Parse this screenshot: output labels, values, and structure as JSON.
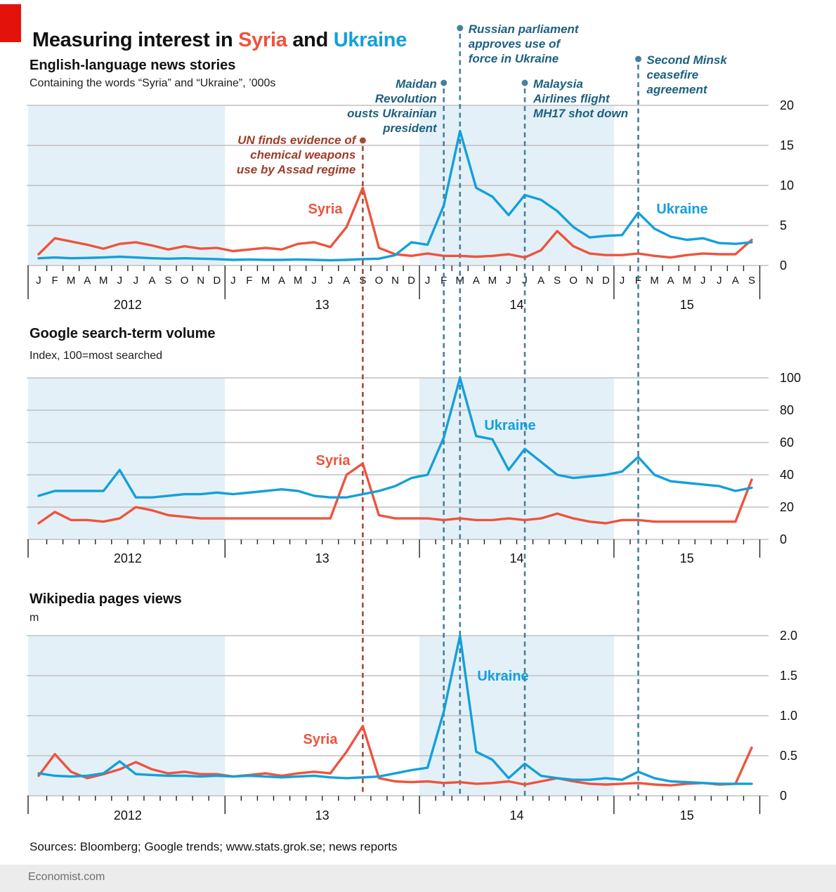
{
  "header": {
    "title_prefix": "Measuring interest in ",
    "title_syria": "Syria",
    "title_and": " and ",
    "title_ukraine": "Ukraine"
  },
  "colors": {
    "accent": "#e3120b",
    "syria": "#ed543e",
    "ukraine": "#13a0da",
    "event_blue": "#45809f",
    "event_red": "#a64a37",
    "annotation_blue": "#1e607e",
    "annotation_red": "#9e3c2a",
    "band": "#e4f0f8",
    "grid": "#c0c0c0"
  },
  "panels": [
    {
      "title": "English-language news stories",
      "subtitle": "Containing the words “Syria” and “Ukraine”, ’000s"
    },
    {
      "title": "Google search-term volume",
      "subtitle": "Index, 100=most searched"
    },
    {
      "title": "Wikipedia pages views",
      "subtitle": "m"
    }
  ],
  "x_axis": {
    "months": [
      "J",
      "F",
      "M",
      "A",
      "M",
      "J",
      "J",
      "A",
      "S",
      "O",
      "N",
      "D",
      "J",
      "F",
      "M",
      "A",
      "M",
      "J",
      "J",
      "A",
      "S",
      "O",
      "N",
      "D",
      "J",
      "F",
      "M",
      "A",
      "M",
      "J",
      "J",
      "A",
      "S",
      "O",
      "N",
      "D",
      "J",
      "F",
      "M",
      "A",
      "M",
      "J",
      "J",
      "A",
      "S"
    ],
    "year_labels": [
      "2012",
      "13",
      "14",
      "15"
    ],
    "year_starts": [
      0,
      12,
      24,
      36
    ],
    "shaded_years": [
      [
        0,
        11
      ],
      [
        24,
        35
      ]
    ]
  },
  "chart_data": [
    {
      "type": "line",
      "title": "English-language news stories",
      "ylabel": "'000s",
      "ylim": [
        0,
        20
      ],
      "yticks": [
        0,
        5,
        10,
        15,
        20
      ],
      "ytick_labels": [
        "0",
        "5",
        "10",
        "15",
        "20"
      ],
      "series": [
        {
          "name": "Syria",
          "color_key": "syria",
          "values": [
            1.4,
            3.4,
            3.0,
            2.6,
            2.1,
            2.7,
            2.9,
            2.5,
            2.0,
            2.4,
            2.1,
            2.2,
            1.8,
            2.0,
            2.2,
            2.0,
            2.7,
            2.9,
            2.3,
            4.8,
            9.7,
            2.2,
            1.4,
            1.2,
            1.5,
            1.2,
            1.2,
            1.1,
            1.2,
            1.4,
            1.0,
            1.9,
            4.3,
            2.4,
            1.5,
            1.3,
            1.3,
            1.5,
            1.2,
            1.0,
            1.3,
            1.5,
            1.4,
            1.4,
            3.2
          ]
        },
        {
          "name": "Ukraine",
          "color_key": "ukraine",
          "values": [
            0.9,
            1.0,
            0.9,
            0.95,
            1.0,
            1.1,
            1.0,
            0.9,
            0.85,
            0.9,
            0.85,
            0.8,
            0.7,
            0.75,
            0.7,
            0.7,
            0.75,
            0.7,
            0.65,
            0.7,
            0.8,
            0.85,
            1.3,
            2.9,
            2.6,
            7.5,
            16.8,
            9.7,
            8.6,
            6.3,
            8.8,
            8.2,
            6.8,
            4.8,
            3.5,
            3.7,
            3.8,
            6.6,
            4.6,
            3.6,
            3.2,
            3.4,
            2.8,
            2.7,
            2.9
          ]
        }
      ]
    },
    {
      "type": "line",
      "title": "Google search-term volume",
      "ylabel": "Index, 100=most searched",
      "ylim": [
        0,
        100
      ],
      "yticks": [
        0,
        20,
        40,
        60,
        80,
        100
      ],
      "ytick_labels": [
        "0",
        "20",
        "40",
        "60",
        "80",
        "100"
      ],
      "series": [
        {
          "name": "Syria",
          "color_key": "syria",
          "values": [
            10,
            17,
            12,
            12,
            11,
            13,
            20,
            18,
            15,
            14,
            13,
            13,
            13,
            13,
            13,
            13,
            13,
            13,
            13,
            40,
            47,
            15,
            13,
            13,
            13,
            12,
            13,
            12,
            12,
            13,
            12,
            13,
            16,
            13,
            11,
            10,
            12,
            12,
            11,
            11,
            11,
            11,
            11,
            11,
            37
          ]
        },
        {
          "name": "Ukraine",
          "color_key": "ukraine",
          "values": [
            27,
            30,
            30,
            30,
            30,
            43,
            26,
            26,
            27,
            28,
            28,
            29,
            28,
            29,
            30,
            31,
            30,
            27,
            26,
            26,
            28,
            30,
            33,
            38,
            40,
            63,
            100,
            64,
            62,
            43,
            56,
            48,
            40,
            38,
            39,
            40,
            42,
            51,
            40,
            36,
            35,
            34,
            33,
            30,
            32
          ]
        }
      ]
    },
    {
      "type": "line",
      "title": "Wikipedia pages views",
      "ylabel": "m",
      "ylim": [
        0,
        2
      ],
      "yticks": [
        0,
        0.5,
        1,
        1.5,
        2
      ],
      "ytick_labels": [
        "0",
        "0.5",
        "1.0",
        "1.5",
        "2.0"
      ],
      "series": [
        {
          "name": "Syria",
          "color_key": "syria",
          "values": [
            0.25,
            0.52,
            0.3,
            0.22,
            0.27,
            0.33,
            0.42,
            0.33,
            0.28,
            0.3,
            0.27,
            0.27,
            0.24,
            0.26,
            0.28,
            0.25,
            0.28,
            0.3,
            0.28,
            0.55,
            0.87,
            0.22,
            0.18,
            0.17,
            0.18,
            0.16,
            0.17,
            0.15,
            0.16,
            0.18,
            0.14,
            0.18,
            0.22,
            0.18,
            0.15,
            0.14,
            0.15,
            0.16,
            0.14,
            0.13,
            0.15,
            0.16,
            0.14,
            0.15,
            0.6
          ]
        },
        {
          "name": "Ukraine",
          "color_key": "ukraine",
          "values": [
            0.28,
            0.25,
            0.24,
            0.25,
            0.28,
            0.43,
            0.27,
            0.26,
            0.25,
            0.25,
            0.24,
            0.25,
            0.24,
            0.25,
            0.24,
            0.23,
            0.24,
            0.25,
            0.23,
            0.22,
            0.23,
            0.24,
            0.28,
            0.32,
            0.35,
            1.05,
            2.0,
            0.55,
            0.45,
            0.22,
            0.4,
            0.25,
            0.22,
            0.2,
            0.2,
            0.22,
            0.2,
            0.3,
            0.22,
            0.18,
            0.17,
            0.16,
            0.15,
            0.15,
            0.15
          ]
        }
      ]
    }
  ],
  "events": [
    {
      "label_lines": [
        "UN finds evidence of",
        "chemical weapons",
        "use by Assad regime"
      ],
      "month_index": 20,
      "color": "red",
      "align": "right"
    },
    {
      "label_lines": [
        "Maidan",
        "Revolution",
        "ousts Ukrainian",
        "president"
      ],
      "month_index": 25,
      "color": "blue",
      "align": "right"
    },
    {
      "label_lines": [
        "Russian parliament",
        "approves use of",
        "force in Ukraine"
      ],
      "month_index": 26,
      "color": "blue",
      "align": "left"
    },
    {
      "label_lines": [
        "Malaysia",
        "Airlines flight",
        "MH17 shot down"
      ],
      "month_index": 30,
      "color": "blue",
      "align": "left"
    },
    {
      "label_lines": [
        "Second Minsk",
        "ceasefire",
        "agreement"
      ],
      "month_index": 37,
      "color": "blue",
      "align": "left"
    }
  ],
  "footer": {
    "sources": "Sources: Bloomberg; Google trends; www.stats.grok.se; news reports",
    "brand": "Economist.com"
  }
}
